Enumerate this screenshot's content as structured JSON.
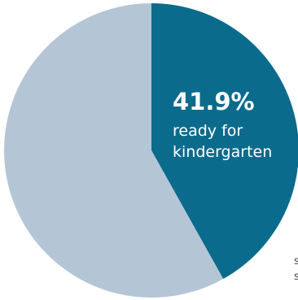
{
  "chart_data": {
    "type": "pie",
    "slices": [
      {
        "label": "ready for kindergarten",
        "value": 41.9,
        "color": "#0b6b8c"
      },
      {
        "label": "",
        "value": 58.1,
        "color": "#b4c6d6"
      }
    ],
    "annotation": {
      "value_text": "41.9%",
      "label_line1": "ready for",
      "label_line2": "kindergarten"
    }
  },
  "cut_off_text": [
    "s",
    "s"
  ]
}
